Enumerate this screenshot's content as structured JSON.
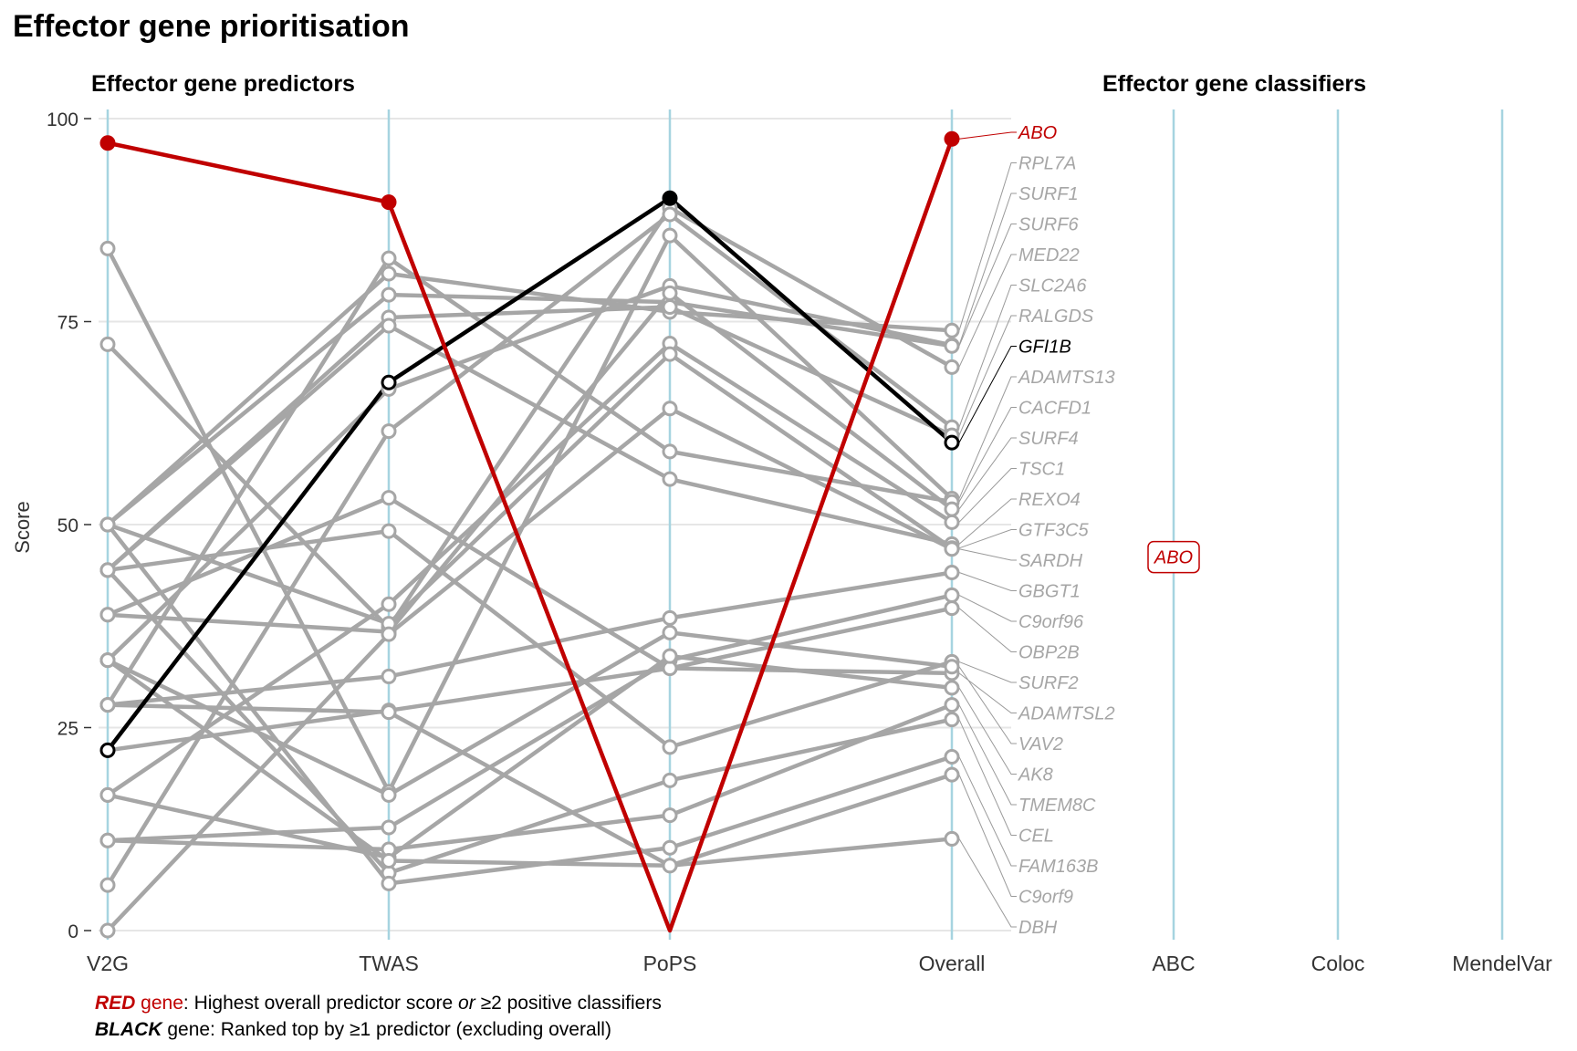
{
  "title": "Effector gene prioritisation",
  "panels": {
    "predictors_title": "Effector gene predictors",
    "classifiers_title": "Effector gene classifiers"
  },
  "colors": {
    "red": "#c00000",
    "black": "#000000",
    "grey": "#a6a6a6",
    "axis_line": "#a6d4e0",
    "grid": "#e6e6e6"
  },
  "footnote": {
    "line1_bold": "RED",
    "line1_word": " gene",
    "line1_text_a": ": Highest overall predictor score ",
    "line1_or": "or",
    "line1_text_b": " ≥2 positive classifiers",
    "line2_bold": "BLACK",
    "line2_text": " gene: Ranked top by ≥1 predictor (excluding overall)"
  },
  "chart_data": {
    "type": "line",
    "predictor_axes": [
      "V2G",
      "TWAS",
      "PoPS",
      "Overall"
    ],
    "classifier_axes": [
      "ABC",
      "Coloc",
      "MendelVar"
    ],
    "ylabel": "Score",
    "ylim": [
      0,
      100
    ],
    "yticks": [
      0,
      25,
      50,
      75,
      100
    ],
    "grid": true,
    "series": [
      {
        "name": "ABO",
        "values": [
          97,
          89.7,
          0,
          97.5
        ],
        "highlight": "red"
      },
      {
        "name": "GFI1B",
        "values": [
          22.2,
          67.5,
          90.2,
          60.1
        ],
        "highlight": "black"
      },
      {
        "name": "RPL7A",
        "values": [
          50,
          80.9,
          76.2,
          73.9
        ]
      },
      {
        "name": "SURF1",
        "values": [
          33.3,
          66.7,
          79.4,
          72.1
        ]
      },
      {
        "name": "SURF6",
        "values": [
          50,
          78.3,
          77.4,
          72.0
        ]
      },
      {
        "name": "MED22",
        "values": [
          72.2,
          37.3,
          89.0,
          69.4
        ]
      },
      {
        "name": "SLC2A6",
        "values": [
          5.6,
          61.5,
          88.2,
          62.0
        ]
      },
      {
        "name": "RALGDS",
        "values": [
          44.4,
          75.5,
          76.8,
          61.0
        ]
      },
      {
        "name": "ADAMTS13",
        "values": [
          84,
          17.1,
          85.6,
          53.2
        ]
      },
      {
        "name": "CACFD1",
        "values": [
          27.8,
          82.8,
          59.0,
          52.8
        ]
      },
      {
        "name": "SURF4",
        "values": [
          38.9,
          36.8,
          78.5,
          51.9
        ]
      },
      {
        "name": "TSC1",
        "values": [
          16.7,
          40.2,
          72.3,
          50.3
        ]
      },
      {
        "name": "REXO4",
        "values": [
          44.4,
          74.5,
          55.6,
          47.6
        ]
      },
      {
        "name": "GTF3C5",
        "values": [
          50,
          37.8,
          71.0,
          47.1
        ]
      },
      {
        "name": "SARDH",
        "values": [
          0,
          36.5,
          64.3,
          47.0
        ]
      },
      {
        "name": "GBGT1",
        "values": [
          27.8,
          31.3,
          38.5,
          44.1
        ]
      },
      {
        "name": "C9orf96",
        "values": [
          11.1,
          12.7,
          33.3,
          41.3
        ]
      },
      {
        "name": "OBP2B",
        "values": [
          22.2,
          27.1,
          32.3,
          39.7
        ]
      },
      {
        "name": "SURF2",
        "values": [
          44.4,
          49.2,
          22.6,
          33.1
        ]
      },
      {
        "name": "ADAMTSL2",
        "values": [
          38.9,
          53.3,
          32.3,
          31.7
        ]
      },
      {
        "name": "VAV2",
        "values": [
          33.3,
          16.7,
          36.7,
          32.5
        ]
      },
      {
        "name": "AK8",
        "values": [
          16.7,
          9.0,
          33.8,
          29.9
        ]
      },
      {
        "name": "TMEM8C",
        "values": [
          11.1,
          10.0,
          14.2,
          27.8
        ]
      },
      {
        "name": "CEL",
        "values": [
          44.4,
          7.1,
          18.5,
          26.0
        ]
      },
      {
        "name": "FAM163B",
        "values": [
          50,
          5.8,
          10.2,
          21.4
        ]
      },
      {
        "name": "C9orf9",
        "values": [
          27.8,
          26.9,
          8.0,
          19.2
        ]
      },
      {
        "name": "DBH",
        "values": [
          33.3,
          8.6,
          8.0,
          11.3
        ]
      }
    ],
    "gene_labels": [
      "ABO",
      "RPL7A",
      "SURF1",
      "SURF6",
      "MED22",
      "SLC2A6",
      "RALGDS",
      "GFI1B",
      "ADAMTS13",
      "CACFD1",
      "SURF4",
      "TSC1",
      "REXO4",
      "GTF3C5",
      "SARDH",
      "GBGT1",
      "C9orf96",
      "OBP2B",
      "SURF2",
      "ADAMTSL2",
      "VAV2",
      "AK8",
      "TMEM8C",
      "CEL",
      "FAM163B",
      "C9orf9",
      "DBH"
    ],
    "classifier_hits": [
      {
        "gene": "ABO",
        "classifier": "ABC",
        "value": 46
      }
    ]
  }
}
